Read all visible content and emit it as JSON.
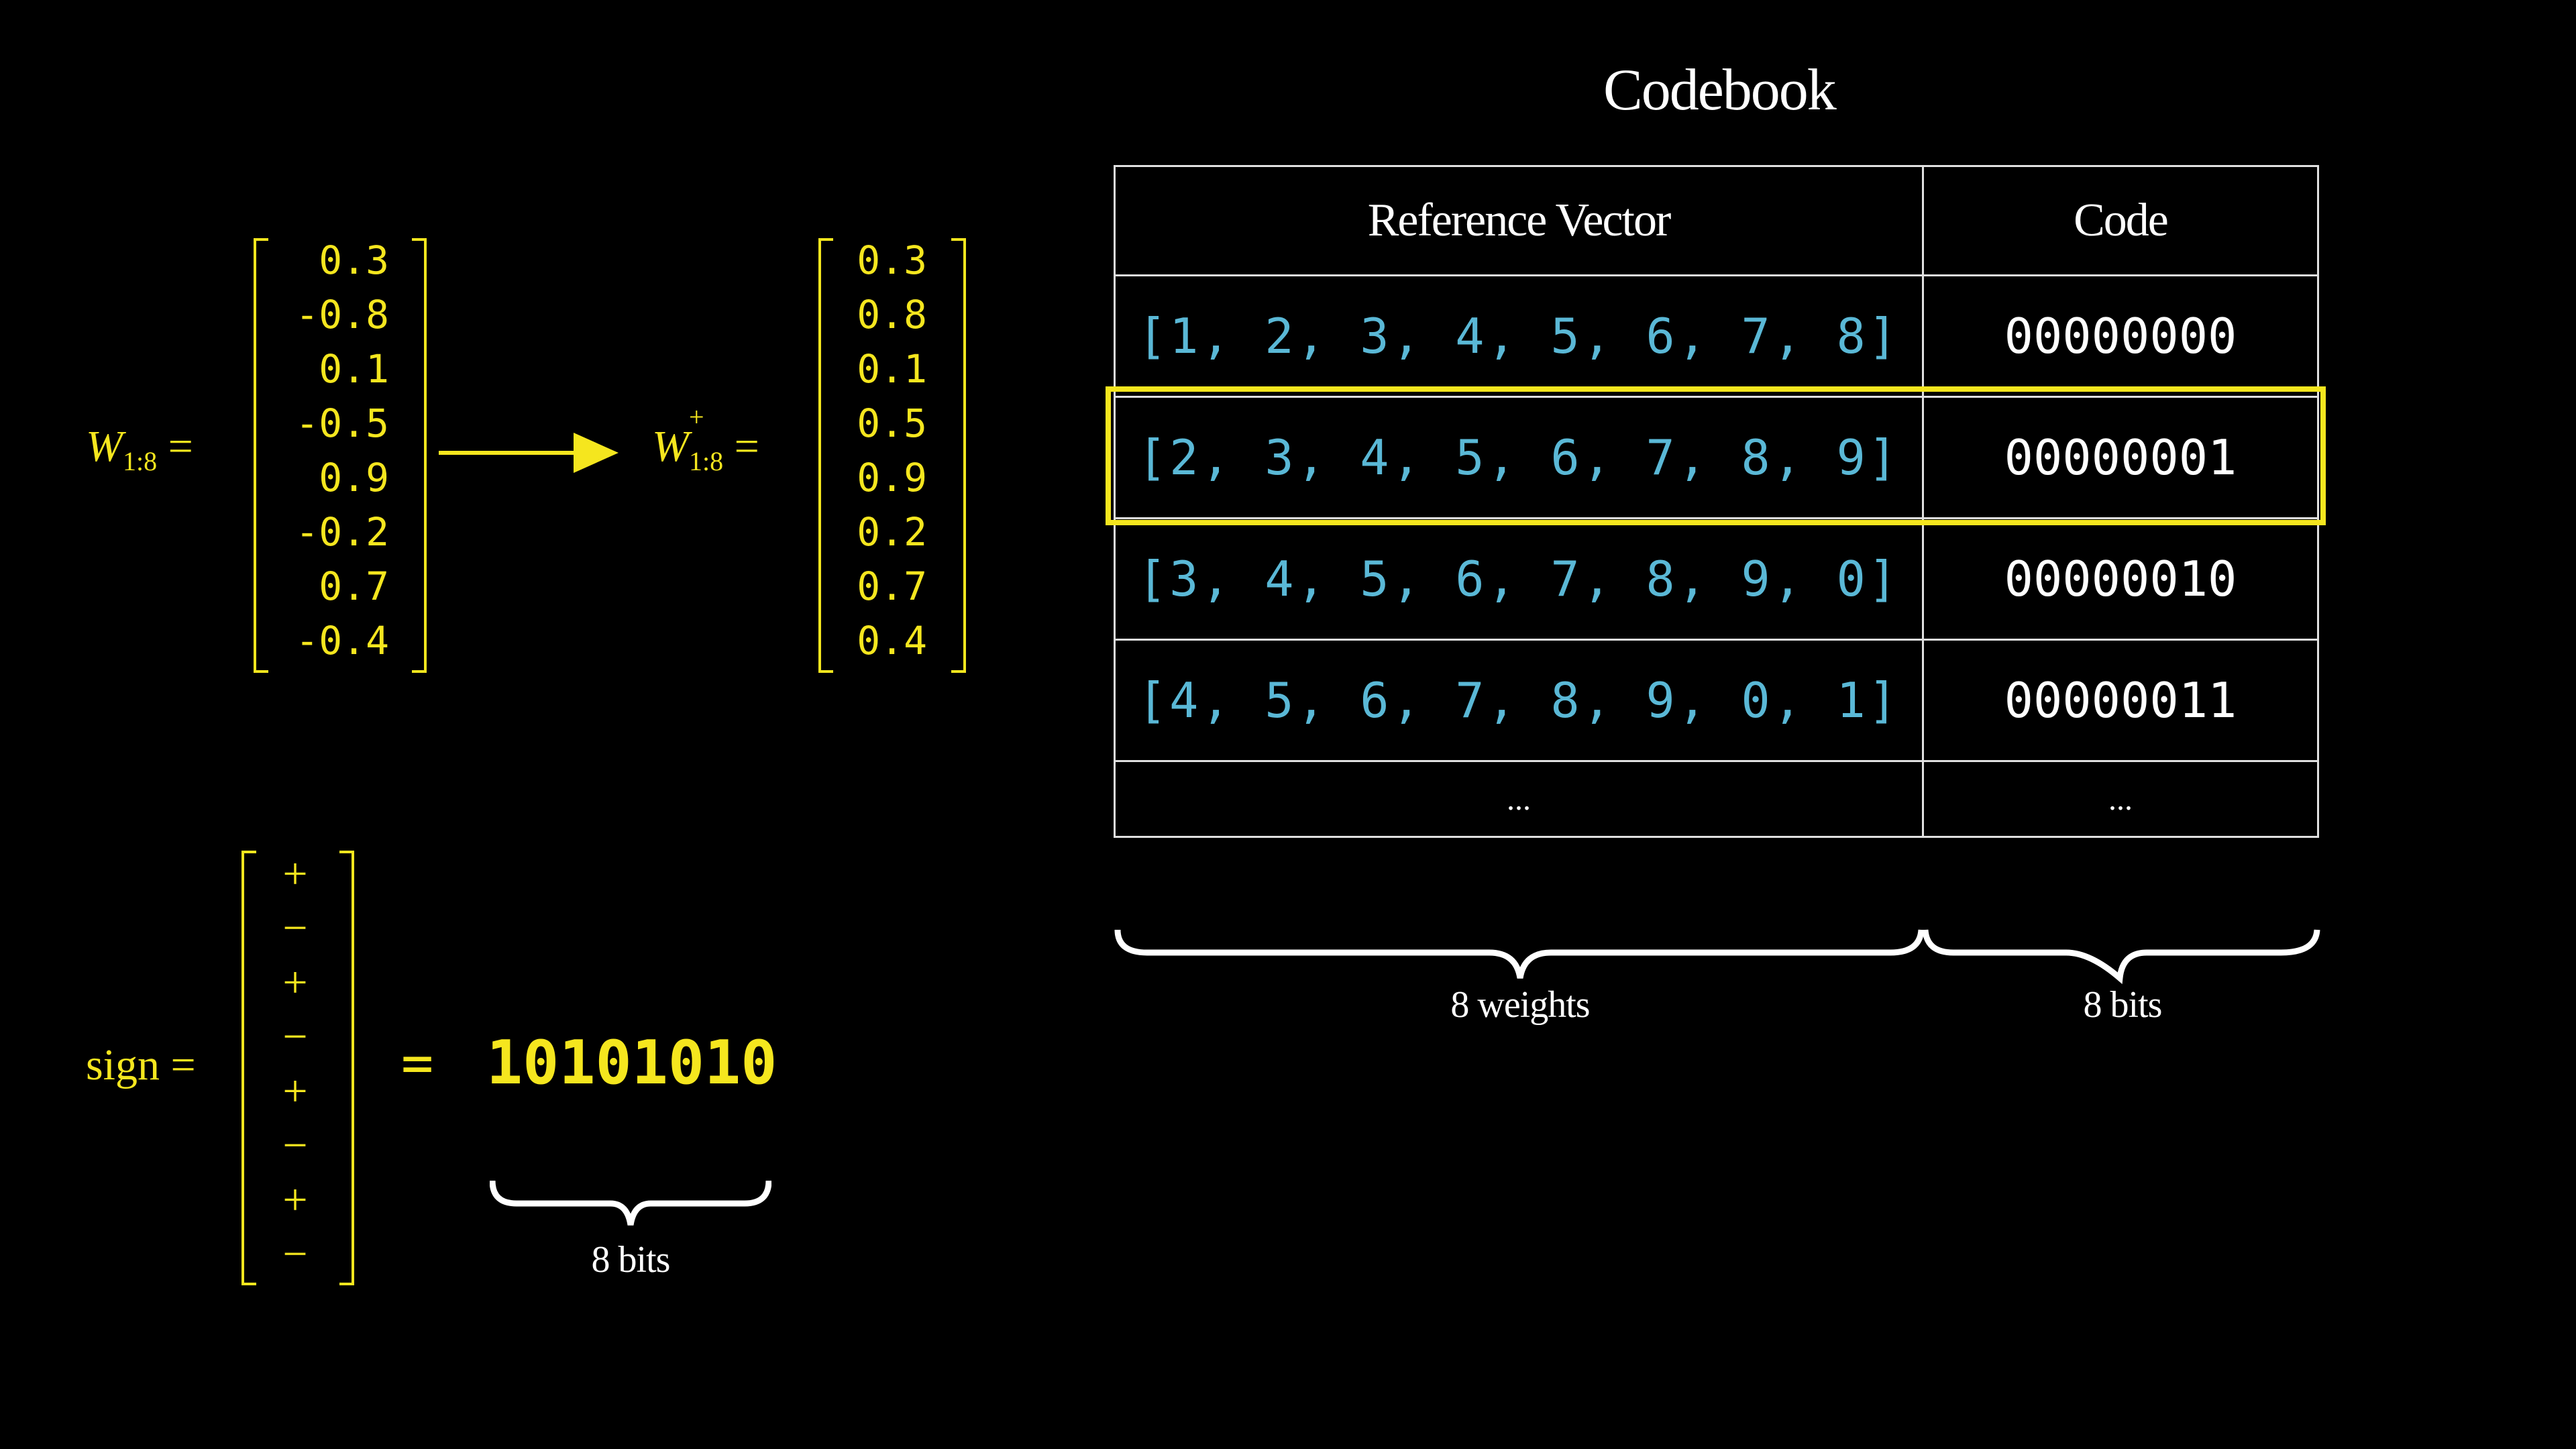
{
  "codebook": {
    "title": "Codebook",
    "headers": [
      "Reference Vector",
      "Code"
    ],
    "rows": [
      {
        "vector": "[1, 2, 3, 4, 5, 6, 7, 8]",
        "code": "00000000"
      },
      {
        "vector": "[2, 3, 4, 5, 6, 7, 8, 9]",
        "code": "00000001"
      },
      {
        "vector": "[3, 4, 5, 6, 7, 8, 9, 0]",
        "code": "00000010"
      },
      {
        "vector": "[4, 5, 6, 7, 8, 9, 0, 1]",
        "code": "00000011"
      }
    ],
    "ellipsis": "...",
    "highlighted_row": 1,
    "brace_left": "8 weights",
    "brace_right": "8 bits"
  },
  "weights": {
    "label_var": "W",
    "label_sub": "1:8",
    "label_sup": "+",
    "equals": "=",
    "original": [
      "0.3",
      "-0.8",
      "0.1",
      "-0.5",
      "0.9",
      "-0.2",
      "0.7",
      "-0.4"
    ],
    "absolute": [
      "0.3",
      "0.8",
      "0.1",
      "0.5",
      "0.9",
      "0.2",
      "0.7",
      "0.4"
    ]
  },
  "sign": {
    "label": "sign",
    "equals": "=",
    "values": [
      "+",
      "−",
      "+",
      "−",
      "+",
      "−",
      "+",
      "−"
    ],
    "result": "10101010",
    "brace_label": "8 bits"
  },
  "colors": {
    "accent": "#f5e61e",
    "vector": "#5ab8d6",
    "background": "#000000",
    "text": "#ffffff"
  }
}
